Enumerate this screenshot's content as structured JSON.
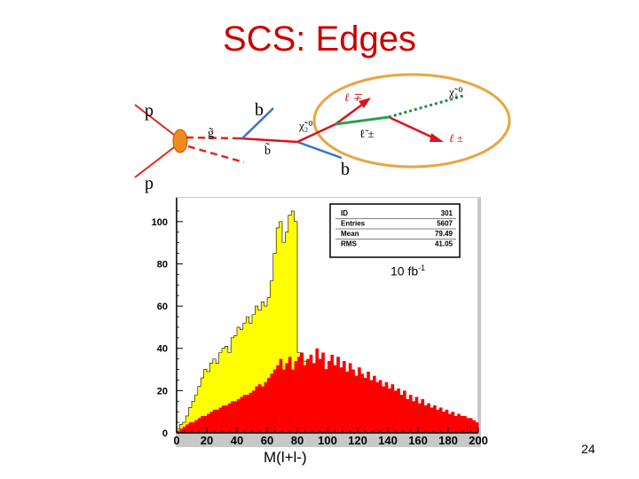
{
  "slide": {
    "title": "SCS: Edges",
    "page_number": "24",
    "x_axis_label": "M(l+l-)",
    "lumi_base": "10 fb",
    "lumi_exp": "-1"
  },
  "diagram": {
    "p_top": "p",
    "p_bottom": "p",
    "gluino": "g̃",
    "sbottom": "b̃",
    "b_top": "b",
    "b_bottom": "b",
    "chi2": "χ̃₂⁰",
    "lepton_top": "ℓ ∓",
    "slepton": "ℓ̃ ±",
    "lepton_bottom": "ℓ ±",
    "chi1": "χ̃₁⁰",
    "colors": {
      "line": "#d9141c",
      "p_line": "#e2261e",
      "b_line": "#3873c8",
      "slepton_line": "#2aa050",
      "dotted": "#2a8a48",
      "ellipse": "#e9a640"
    }
  },
  "chart_data": {
    "type": "bar",
    "bins": 100,
    "x_range": [
      0,
      200
    ],
    "ylim": [
      0,
      110
    ],
    "x_ticks": [
      0,
      20,
      40,
      60,
      80,
      100,
      120,
      140,
      160,
      180,
      200
    ],
    "y_ticks": [
      0,
      20,
      40,
      60,
      80,
      100
    ],
    "stats": [
      {
        "label": "ID",
        "value": "301"
      },
      {
        "label": "Entries",
        "value": "5607"
      },
      {
        "label": "Mean",
        "value": "79.49"
      },
      {
        "label": "RMS",
        "value": "41.05"
      }
    ],
    "series": [
      {
        "color": "#ffff00",
        "values": [
          2,
          4,
          5,
          8,
          12,
          15,
          18,
          22,
          26,
          30,
          29,
          33,
          35,
          33,
          38,
          40,
          41,
          38,
          45,
          46,
          50,
          49,
          52,
          55,
          52,
          56,
          60,
          58,
          62,
          60,
          64,
          72,
          85,
          97,
          100,
          90,
          95,
          103,
          105,
          100,
          38,
          36,
          34,
          32,
          30,
          29,
          28,
          30,
          27,
          30,
          26,
          28,
          25,
          27,
          24,
          26,
          22,
          23,
          20,
          23,
          22,
          25,
          20,
          22,
          19,
          20,
          17,
          18,
          15,
          16,
          14,
          16,
          12,
          14,
          13,
          12,
          10,
          12,
          9,
          11,
          8,
          10,
          7,
          9,
          6,
          8,
          5,
          7,
          5,
          6,
          4,
          5,
          4,
          5,
          3,
          4,
          3,
          3,
          2,
          2
        ]
      },
      {
        "color": "#ff0000",
        "values": [
          1,
          2,
          3,
          4,
          5,
          5,
          6,
          7,
          8,
          8,
          9,
          10,
          11,
          11,
          12,
          13,
          13,
          14,
          15,
          15,
          16,
          17,
          18,
          18,
          19,
          20,
          22,
          23,
          22,
          24,
          26,
          28,
          30,
          32,
          35,
          30,
          33,
          36,
          30,
          34,
          36,
          38,
          32,
          35,
          37,
          33,
          40,
          35,
          38,
          30,
          34,
          37,
          32,
          36,
          31,
          34,
          29,
          33,
          30,
          27,
          31,
          28,
          26,
          29,
          25,
          27,
          24,
          25,
          22,
          24,
          21,
          23,
          20,
          21,
          18,
          20,
          16,
          18,
          15,
          17,
          14,
          16,
          13,
          14,
          12,
          13,
          11,
          12,
          10,
          11,
          9,
          10,
          8,
          9,
          8,
          8,
          7,
          7,
          6,
          5
        ]
      }
    ]
  }
}
